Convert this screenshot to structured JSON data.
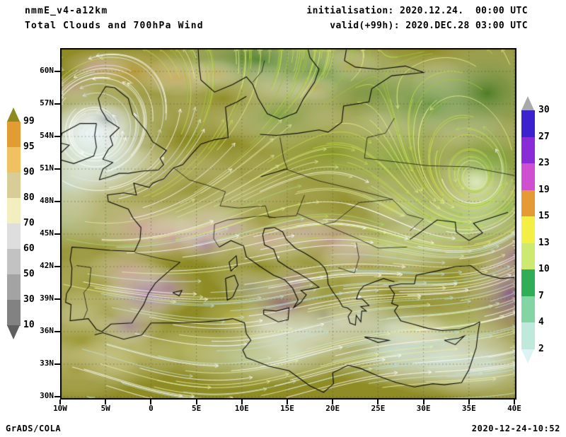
{
  "header": {
    "model": "nmmE_v4-a12km",
    "product": "Total Clouds and 700hPa Wind",
    "init": "initialisation: 2020.12.24.  00:00 UTC",
    "valid": "valid(+99h): 2020.DEC.28 03:00 UTC"
  },
  "footer": {
    "left": "GrADS/COLA",
    "right": "2020-12-24-10:52"
  },
  "axes": {
    "lat_ticks": [
      "60N",
      "57N",
      "54N",
      "51N",
      "48N",
      "45N",
      "42N",
      "39N",
      "36N",
      "33N",
      "30N"
    ],
    "lon_ticks": [
      "10W",
      "5W",
      "0",
      "5E",
      "10E",
      "15E",
      "20E",
      "25E",
      "30E",
      "35E",
      "40E"
    ]
  },
  "legends": {
    "cloud_cover": {
      "name": "total-clouds-percent",
      "labels": [
        "99",
        "95",
        "90",
        "80",
        "70",
        "60",
        "50",
        "30",
        "10"
      ],
      "colors": [
        "#8d8b1f",
        "#e39b33",
        "#f0c061",
        "#d8cd96",
        "#f2eec0",
        "#dedede",
        "#c2c2c2",
        "#a3a3a3",
        "#828282",
        "#5f5f5f"
      ]
    },
    "wind_speed": {
      "name": "700hPa-wind-speed",
      "labels": [
        "30",
        "27",
        "23",
        "19",
        "15",
        "13",
        "10",
        "7",
        "4",
        "2"
      ],
      "colors": [
        "#a9a9a9",
        "#3a23cf",
        "#8a2bd8",
        "#d04fd0",
        "#e69a36",
        "#f3ef45",
        "#cde96f",
        "#2fae57",
        "#83d6a3",
        "#bfeadb",
        "#def3f6"
      ]
    }
  }
}
